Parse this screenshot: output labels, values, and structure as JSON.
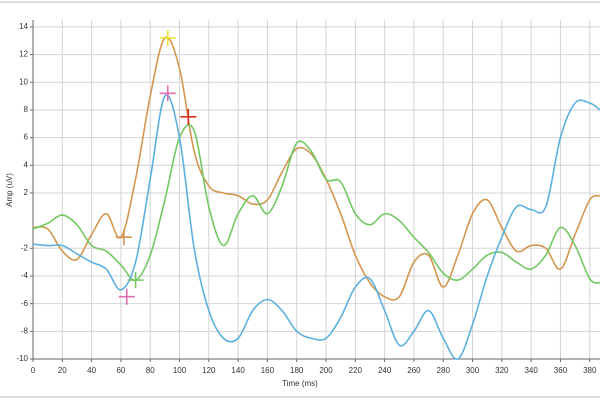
{
  "chart_data": {
    "type": "line",
    "x_label": "Time (ms)",
    "y_label": "Amp (uV)",
    "x": [
      0,
      10,
      20,
      30,
      40,
      50,
      60,
      70,
      80,
      90,
      100,
      110,
      120,
      130,
      140,
      150,
      160,
      170,
      180,
      190,
      200,
      210,
      220,
      230,
      240,
      250,
      260,
      270,
      280,
      290,
      300,
      310,
      320,
      330,
      340,
      350,
      360,
      370,
      380,
      387
    ],
    "series": [
      {
        "color": "#d4964e",
        "values": [
          -0.5,
          -0.6,
          -2.2,
          -2.8,
          -1.0,
          0.5,
          -1.2,
          3,
          9,
          13.2,
          11,
          5,
          2.5,
          2,
          1.8,
          1.2,
          1.5,
          3.5,
          5.2,
          4.8,
          3,
          0.5,
          -2.5,
          -4.5,
          -5.5,
          -5.5,
          -3,
          -2.5,
          -4.8,
          -2.5,
          0.5,
          1.5,
          -0.5,
          -2.2,
          -1.8,
          -2,
          -3.5,
          -1,
          1.5,
          1.8
        ]
      },
      {
        "color": "#72c862",
        "values": [
          -0.6,
          -0.2,
          0.4,
          -0.3,
          -1.8,
          -2.2,
          -3.2,
          -4.3,
          -2.5,
          1.5,
          6,
          6.5,
          1,
          -1.8,
          0.5,
          1.8,
          0.5,
          2.5,
          5.6,
          5,
          3,
          2.8,
          0.5,
          -0.3,
          0.5,
          0,
          -1.2,
          -2.3,
          -3.8,
          -4.3,
          -3.5,
          -2.5,
          -2.3,
          -3,
          -3.5,
          -2.5,
          -0.5,
          -1.8,
          -4.2,
          -4.5
        ]
      },
      {
        "color": "#5cb0e0",
        "values": [
          -1.7,
          -1.8,
          -1.8,
          -2.4,
          -3,
          -3.5,
          -5.0,
          -3,
          3,
          9,
          6,
          -2,
          -6.5,
          -8.5,
          -8.5,
          -6.5,
          -5.7,
          -6.5,
          -8,
          -8.5,
          -8.5,
          -7,
          -4.8,
          -4.2,
          -6.5,
          -9,
          -8,
          -6.5,
          -8.5,
          -10,
          -7.5,
          -4,
          -1.2,
          1,
          0.8,
          1,
          6,
          8.5,
          8.5,
          8
        ]
      }
    ],
    "markers": [
      {
        "x": 92,
        "y": 13.2,
        "color": "#f0e030"
      },
      {
        "x": 92,
        "y": 9.2,
        "color": "#e070b0"
      },
      {
        "x": 106,
        "y": 7.5,
        "color": "#d83020"
      },
      {
        "x": 62,
        "y": -1.2,
        "color": "#d4964e"
      },
      {
        "x": 70,
        "y": -4.3,
        "color": "#72c862"
      },
      {
        "x": 64,
        "y": -5.5,
        "color": "#e070b0"
      }
    ],
    "xlim": [
      0,
      387
    ],
    "ylim": [
      -10,
      14.5
    ],
    "xticks": [
      0,
      20,
      40,
      60,
      80,
      100,
      120,
      140,
      160,
      180,
      200,
      220,
      240,
      260,
      280,
      300,
      320,
      340,
      360,
      380
    ],
    "yticks": [
      14,
      12,
      10,
      8,
      6,
      4,
      2,
      -2,
      -4,
      -6,
      -8,
      -10
    ],
    "grid": true
  }
}
